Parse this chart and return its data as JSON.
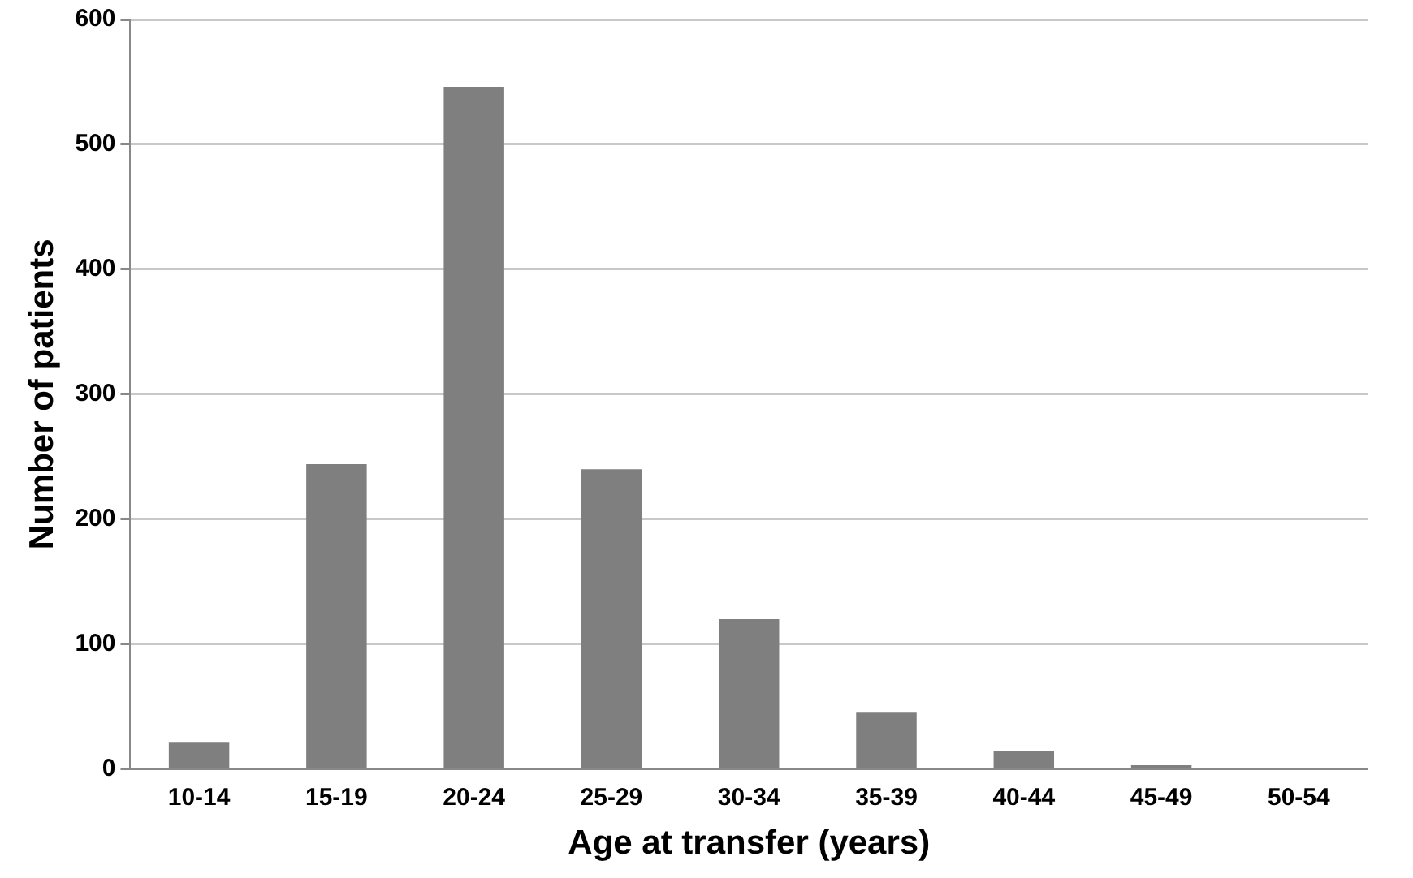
{
  "chart_data": {
    "type": "bar",
    "xlabel": "Age at transfer (years)",
    "ylabel": "Number of patients",
    "categories": [
      "10-14",
      "15-19",
      "20-24",
      "25-29",
      "30-34",
      "35-39",
      "40-44",
      "45-49",
      "50-54"
    ],
    "values": [
      21,
      244,
      546,
      240,
      120,
      45,
      14,
      3,
      1
    ],
    "color": "#7f7f7f",
    "ylim": [
      0,
      600
    ],
    "yticks": [
      0,
      100,
      200,
      300,
      400,
      500,
      600
    ],
    "grid": "y",
    "legend": false
  }
}
